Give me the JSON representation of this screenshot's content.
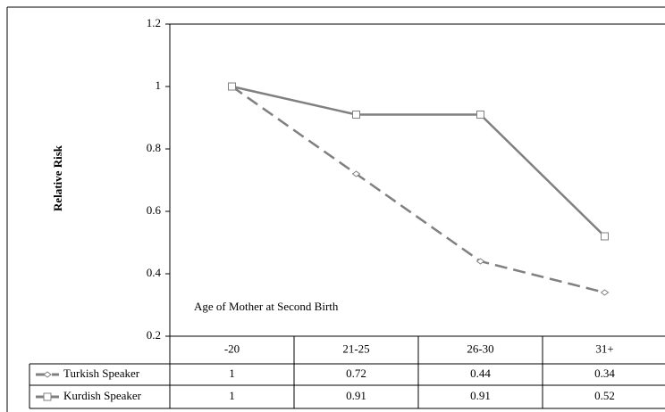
{
  "chart_data": {
    "type": "line",
    "y_label": "Relative Risk",
    "annotation": "Age of Mother at Second Birth",
    "categories": [
      "-20",
      "21-25",
      "26-30",
      "31+"
    ],
    "series": [
      {
        "name": "Turkish Speaker",
        "color": "#808080",
        "style": "dashed",
        "marker": "diamond",
        "values": [
          1,
          0.72,
          0.44,
          0.34
        ]
      },
      {
        "name": "Kurdish Speaker",
        "color": "#808080",
        "style": "solid",
        "marker": "square",
        "values": [
          1,
          0.91,
          0.91,
          0.52
        ]
      }
    ],
    "ylim": [
      0.2,
      1.2
    ],
    "yticks": [
      0.2,
      0.4,
      0.6,
      0.8,
      1,
      1.2
    ]
  }
}
